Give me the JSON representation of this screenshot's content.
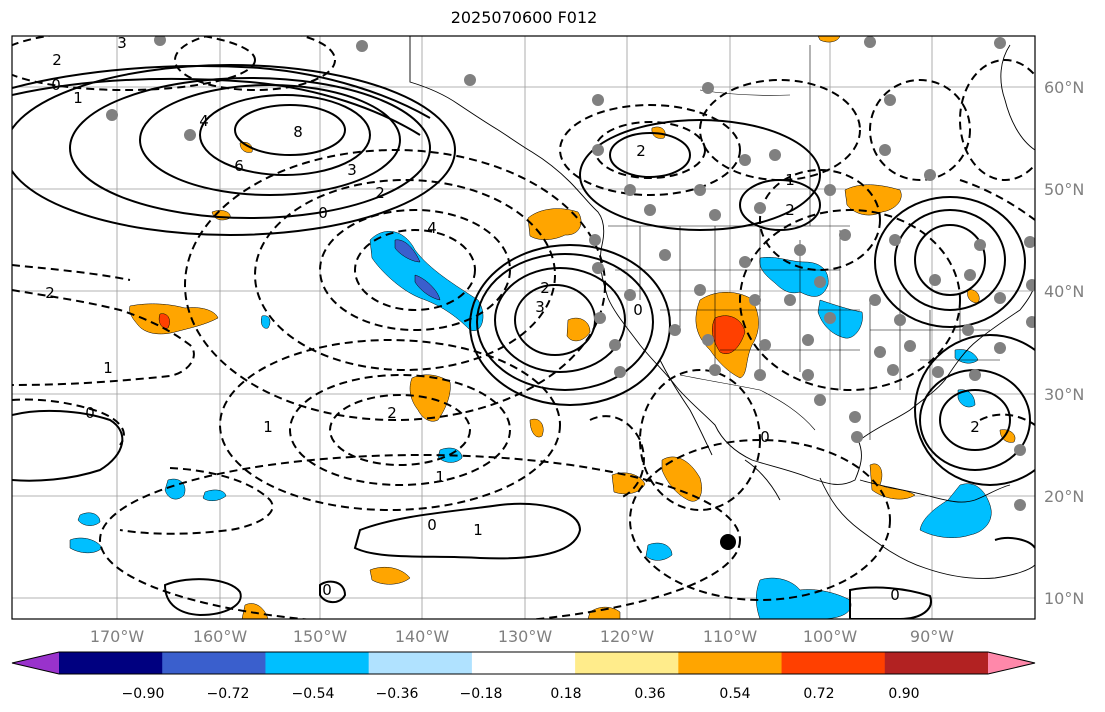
{
  "title": "2025070600 F012",
  "lon_labels": [
    "170°W",
    "160°W",
    "150°W",
    "140°W",
    "130°W",
    "120°W",
    "110°W",
    "100°W",
    "90°W"
  ],
  "lat_labels": [
    "60°N",
    "50°N",
    "40°N",
    "30°N",
    "20°N",
    "10°N"
  ],
  "colorbar": {
    "ticks": [
      "−0.90",
      "−0.72",
      "−0.54",
      "−0.36",
      "−0.18",
      "0.18",
      "0.36",
      "0.54",
      "0.72",
      "0.90"
    ],
    "colors": [
      "#9932cc",
      "#000080",
      "#3a5fcd",
      "#00bfff",
      "#b0e2ff",
      "#ffffff",
      "#ffec8b",
      "#ffa500",
      "#ff4000",
      "#b22222",
      "#ff88aa"
    ]
  },
  "contour_labels": [
    "3",
    "2",
    "0",
    "1",
    "4",
    "8",
    "6",
    "3",
    "2",
    "0",
    "4",
    "2",
    "1",
    "2",
    "3",
    "2",
    "0",
    "1",
    "2",
    "1",
    "2",
    "0",
    "1",
    "0",
    "0",
    "1",
    "2",
    "0",
    "0"
  ],
  "legend_note": ""
}
